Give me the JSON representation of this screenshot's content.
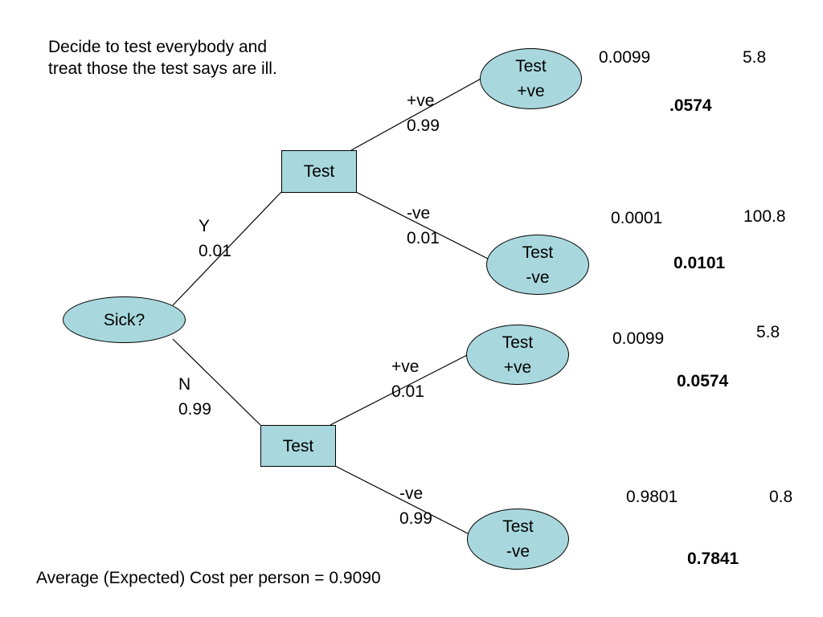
{
  "intro": {
    "line1": "Decide to test everybody and",
    "line2": "treat those the test says are ill."
  },
  "nodes": {
    "root": "Sick?",
    "test_y": "Test",
    "test_n": "Test",
    "leaf1": [
      "Test",
      "+ve"
    ],
    "leaf2": [
      "Test",
      "-ve"
    ],
    "leaf3": [
      "Test",
      "+ve"
    ],
    "leaf4": [
      "Test",
      "-ve"
    ]
  },
  "branches": {
    "y": {
      "label": "Y",
      "prob": "0.01"
    },
    "n": {
      "label": "N",
      "prob": "0.99"
    },
    "y_pos": {
      "label": "+ve",
      "prob": "0.99"
    },
    "y_neg": {
      "label": "-ve",
      "prob": "0.01"
    },
    "n_pos": {
      "label": "+ve",
      "prob": "0.01"
    },
    "n_neg": {
      "label": "-ve",
      "prob": "0.99"
    }
  },
  "outcomes": [
    {
      "probability": "0.0099",
      "cost": "5.8",
      "weighted": ".0574"
    },
    {
      "probability": "0.0001",
      "cost": "100.8",
      "weighted": "0.0101"
    },
    {
      "probability": "0.0099",
      "cost": "5.8",
      "weighted": "0.0574"
    },
    {
      "probability": "0.9801",
      "cost": "0.8",
      "weighted": "0.7841"
    }
  ],
  "footer": "Average (Expected) Cost per person = 0.9090",
  "colors": {
    "node_fill": "#a8d8dd",
    "line": "#000000"
  }
}
